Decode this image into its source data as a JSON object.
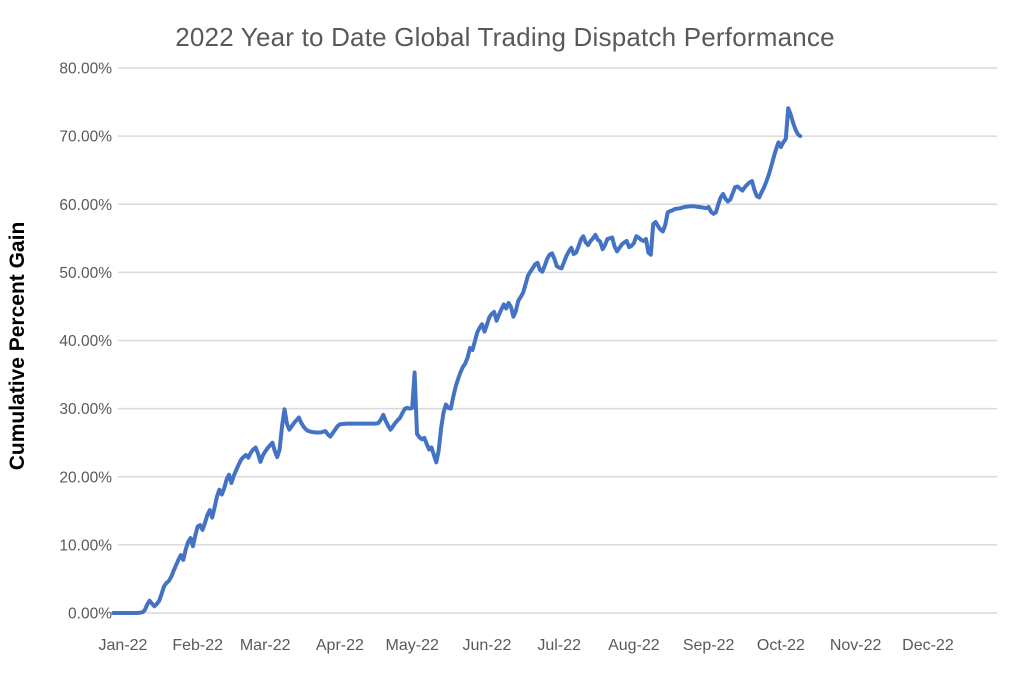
{
  "chart_data": {
    "type": "line",
    "title": "2022 Year to Date Global Trading Dispatch Performance",
    "xlabel": "",
    "ylabel": "Cumulative Percent Gain",
    "ylim": [
      0,
      80
    ],
    "grid": "horizontal",
    "legend": false,
    "line_color": "#4472C4",
    "grid_color": "#D9D9D9",
    "tick_text_color": "#595959",
    "title_color": "#595959",
    "axis_title_color": "#000000",
    "y_ticks": [
      {
        "value": 0,
        "label": "0.00%"
      },
      {
        "value": 10,
        "label": "10.00%"
      },
      {
        "value": 20,
        "label": "20.00%"
      },
      {
        "value": 30,
        "label": "30.00%"
      },
      {
        "value": 40,
        "label": "40.00%"
      },
      {
        "value": 50,
        "label": "50.00%"
      },
      {
        "value": 60,
        "label": "60.00%"
      },
      {
        "value": 70,
        "label": "70.00%"
      },
      {
        "value": 80,
        "label": "80.00%"
      }
    ],
    "x_ticks": [
      {
        "day": 0,
        "label": "Jan-22"
      },
      {
        "day": 31,
        "label": "Feb-22"
      },
      {
        "day": 59,
        "label": "Mar-22"
      },
      {
        "day": 90,
        "label": "Apr-22"
      },
      {
        "day": 120,
        "label": "May-22"
      },
      {
        "day": 151,
        "label": "Jun-22"
      },
      {
        "day": 181,
        "label": "Jul-22"
      },
      {
        "day": 212,
        "label": "Aug-22"
      },
      {
        "day": 243,
        "label": "Sep-22"
      },
      {
        "day": 273,
        "label": "Oct-22"
      },
      {
        "day": 304,
        "label": "Nov-22"
      },
      {
        "day": 334,
        "label": "Dec-22"
      }
    ],
    "series": [
      {
        "name": "Cumulative Percent Gain",
        "x_unit": "days_since_2022-01-01",
        "y_unit": "percent",
        "points": [
          [
            -4,
            0
          ],
          [
            0,
            0
          ],
          [
            3,
            0
          ],
          [
            6,
            0
          ],
          [
            8,
            0.1
          ],
          [
            9,
            0.4
          ],
          [
            10,
            1.2
          ],
          [
            11,
            1.8
          ],
          [
            12,
            1.4
          ],
          [
            13,
            1.0
          ],
          [
            14,
            1.3
          ],
          [
            15,
            1.8
          ],
          [
            16,
            2.8
          ],
          [
            17,
            3.9
          ],
          [
            18,
            4.4
          ],
          [
            19,
            4.7
          ],
          [
            20,
            5.3
          ],
          [
            21,
            6.2
          ],
          [
            22,
            7.0
          ],
          [
            23,
            7.8
          ],
          [
            24,
            8.5
          ],
          [
            25,
            7.8
          ],
          [
            26,
            9.3
          ],
          [
            27,
            10.4
          ],
          [
            28,
            11.0
          ],
          [
            29,
            9.8
          ],
          [
            30,
            11.4
          ],
          [
            31,
            12.7
          ],
          [
            32,
            12.9
          ],
          [
            33,
            12.2
          ],
          [
            34,
            13.2
          ],
          [
            35,
            14.4
          ],
          [
            36,
            15.1
          ],
          [
            37,
            14.0
          ],
          [
            38,
            15.5
          ],
          [
            39,
            17.1
          ],
          [
            40,
            18.1
          ],
          [
            41,
            17.4
          ],
          [
            42,
            18.3
          ],
          [
            43,
            19.6
          ],
          [
            44,
            20.3
          ],
          [
            45,
            19.1
          ],
          [
            46,
            20.2
          ],
          [
            47,
            21.0
          ],
          [
            48,
            21.8
          ],
          [
            49,
            22.5
          ],
          [
            50,
            22.9
          ],
          [
            51,
            23.2
          ],
          [
            52,
            22.8
          ],
          [
            53,
            23.5
          ],
          [
            54,
            24.0
          ],
          [
            55,
            24.3
          ],
          [
            56,
            23.4
          ],
          [
            57,
            22.2
          ],
          [
            58,
            23.1
          ],
          [
            59,
            23.7
          ],
          [
            60,
            24.2
          ],
          [
            61,
            24.6
          ],
          [
            62,
            25.0
          ],
          [
            63,
            23.8
          ],
          [
            64,
            22.9
          ],
          [
            65,
            24.0
          ],
          [
            66,
            27.5
          ],
          [
            67,
            29.9
          ],
          [
            68,
            27.8
          ],
          [
            69,
            26.9
          ],
          [
            70,
            27.4
          ],
          [
            71,
            27.9
          ],
          [
            72,
            28.3
          ],
          [
            73,
            28.7
          ],
          [
            74,
            27.9
          ],
          [
            75,
            27.3
          ],
          [
            76,
            26.9
          ],
          [
            77,
            26.7
          ],
          [
            78,
            26.6
          ],
          [
            80,
            26.5
          ],
          [
            82,
            26.5
          ],
          [
            84,
            26.7
          ],
          [
            85,
            26.2
          ],
          [
            86,
            25.9
          ],
          [
            87,
            26.4
          ],
          [
            88,
            26.9
          ],
          [
            89,
            27.4
          ],
          [
            90,
            27.7
          ],
          [
            93,
            27.8
          ],
          [
            97,
            27.8
          ],
          [
            101,
            27.8
          ],
          [
            105,
            27.8
          ],
          [
            106,
            27.9
          ],
          [
            107,
            28.4
          ],
          [
            108,
            29.1
          ],
          [
            109,
            28.2
          ],
          [
            110,
            27.5
          ],
          [
            111,
            26.9
          ],
          [
            112,
            27.4
          ],
          [
            113,
            27.9
          ],
          [
            114,
            28.3
          ],
          [
            115,
            28.7
          ],
          [
            116,
            29.4
          ],
          [
            117,
            30.0
          ],
          [
            118,
            30.1
          ],
          [
            119,
            30.0
          ],
          [
            120,
            30.1
          ],
          [
            121,
            35.3
          ],
          [
            122,
            26.3
          ],
          [
            123,
            25.8
          ],
          [
            124,
            25.5
          ],
          [
            125,
            25.7
          ],
          [
            126,
            24.8
          ],
          [
            127,
            24.0
          ],
          [
            128,
            24.3
          ],
          [
            129,
            23.2
          ],
          [
            130,
            22.1
          ],
          [
            131,
            23.9
          ],
          [
            132,
            27.1
          ],
          [
            133,
            29.4
          ],
          [
            134,
            30.6
          ],
          [
            135,
            30.1
          ],
          [
            136,
            30.0
          ],
          [
            137,
            31.7
          ],
          [
            138,
            33.2
          ],
          [
            139,
            34.3
          ],
          [
            140,
            35.3
          ],
          [
            141,
            36.1
          ],
          [
            142,
            36.6
          ],
          [
            143,
            37.5
          ],
          [
            144,
            38.9
          ],
          [
            145,
            38.6
          ],
          [
            146,
            39.9
          ],
          [
            147,
            41.2
          ],
          [
            148,
            41.9
          ],
          [
            149,
            42.4
          ],
          [
            150,
            41.3
          ],
          [
            151,
            42.3
          ],
          [
            152,
            43.4
          ],
          [
            153,
            43.9
          ],
          [
            154,
            44.2
          ],
          [
            155,
            42.9
          ],
          [
            156,
            43.8
          ],
          [
            157,
            44.6
          ],
          [
            158,
            45.3
          ],
          [
            159,
            44.7
          ],
          [
            160,
            45.5
          ],
          [
            161,
            44.9
          ],
          [
            162,
            43.5
          ],
          [
            163,
            44.3
          ],
          [
            164,
            45.8
          ],
          [
            165,
            46.4
          ],
          [
            166,
            47.0
          ],
          [
            167,
            48.2
          ],
          [
            168,
            49.5
          ],
          [
            169,
            50.1
          ],
          [
            170,
            50.6
          ],
          [
            171,
            51.2
          ],
          [
            172,
            51.4
          ],
          [
            173,
            50.4
          ],
          [
            174,
            50.1
          ],
          [
            175,
            51.0
          ],
          [
            176,
            52.0
          ],
          [
            177,
            52.6
          ],
          [
            178,
            52.8
          ],
          [
            179,
            52.0
          ],
          [
            180,
            50.9
          ],
          [
            181,
            50.7
          ],
          [
            182,
            50.6
          ],
          [
            183,
            51.5
          ],
          [
            184,
            52.4
          ],
          [
            185,
            53.1
          ],
          [
            186,
            53.6
          ],
          [
            187,
            52.7
          ],
          [
            188,
            52.9
          ],
          [
            189,
            53.8
          ],
          [
            190,
            54.8
          ],
          [
            191,
            55.3
          ],
          [
            192,
            54.4
          ],
          [
            193,
            54.0
          ],
          [
            194,
            54.6
          ],
          [
            195,
            55.0
          ],
          [
            196,
            55.5
          ],
          [
            197,
            54.8
          ],
          [
            198,
            54.5
          ],
          [
            199,
            53.4
          ],
          [
            200,
            54.0
          ],
          [
            201,
            54.9
          ],
          [
            202,
            55.0
          ],
          [
            203,
            55.1
          ],
          [
            204,
            53.8
          ],
          [
            205,
            53.1
          ],
          [
            206,
            53.6
          ],
          [
            207,
            54.1
          ],
          [
            208,
            54.4
          ],
          [
            209,
            54.6
          ],
          [
            210,
            53.7
          ],
          [
            211,
            53.9
          ],
          [
            212,
            54.3
          ],
          [
            213,
            55.3
          ],
          [
            214,
            55.1
          ],
          [
            215,
            54.8
          ],
          [
            216,
            54.6
          ],
          [
            217,
            54.9
          ],
          [
            218,
            52.9
          ],
          [
            219,
            52.6
          ],
          [
            220,
            57.1
          ],
          [
            221,
            57.4
          ],
          [
            222,
            56.8
          ],
          [
            223,
            56.3
          ],
          [
            224,
            56.0
          ],
          [
            225,
            57.0
          ],
          [
            226,
            58.8
          ],
          [
            227,
            59.0
          ],
          [
            228,
            59.1
          ],
          [
            229,
            59.3
          ],
          [
            231,
            59.4
          ],
          [
            233,
            59.6
          ],
          [
            235,
            59.7
          ],
          [
            237,
            59.7
          ],
          [
            239,
            59.6
          ],
          [
            241,
            59.5
          ],
          [
            242,
            59.4
          ],
          [
            243,
            59.6
          ],
          [
            244,
            58.9
          ],
          [
            245,
            58.6
          ],
          [
            246,
            58.8
          ],
          [
            247,
            60.0
          ],
          [
            248,
            61.0
          ],
          [
            249,
            61.5
          ],
          [
            250,
            60.8
          ],
          [
            251,
            60.4
          ],
          [
            252,
            60.7
          ],
          [
            253,
            61.6
          ],
          [
            254,
            62.5
          ],
          [
            255,
            62.6
          ],
          [
            256,
            62.3
          ],
          [
            257,
            62.0
          ],
          [
            258,
            62.5
          ],
          [
            259,
            62.9
          ],
          [
            260,
            63.2
          ],
          [
            261,
            63.4
          ],
          [
            262,
            62.1
          ],
          [
            263,
            61.2
          ],
          [
            264,
            61.0
          ],
          [
            265,
            61.8
          ],
          [
            266,
            62.5
          ],
          [
            267,
            63.4
          ],
          [
            268,
            64.4
          ],
          [
            269,
            65.6
          ],
          [
            270,
            66.9
          ],
          [
            271,
            68.1
          ],
          [
            272,
            69.1
          ],
          [
            273,
            68.4
          ],
          [
            274,
            69.1
          ],
          [
            275,
            69.6
          ],
          [
            276,
            74.1
          ],
          [
            277,
            73.2
          ],
          [
            278,
            72.0
          ],
          [
            279,
            71.0
          ],
          [
            280,
            70.3
          ],
          [
            281,
            70.0
          ]
        ]
      }
    ]
  }
}
